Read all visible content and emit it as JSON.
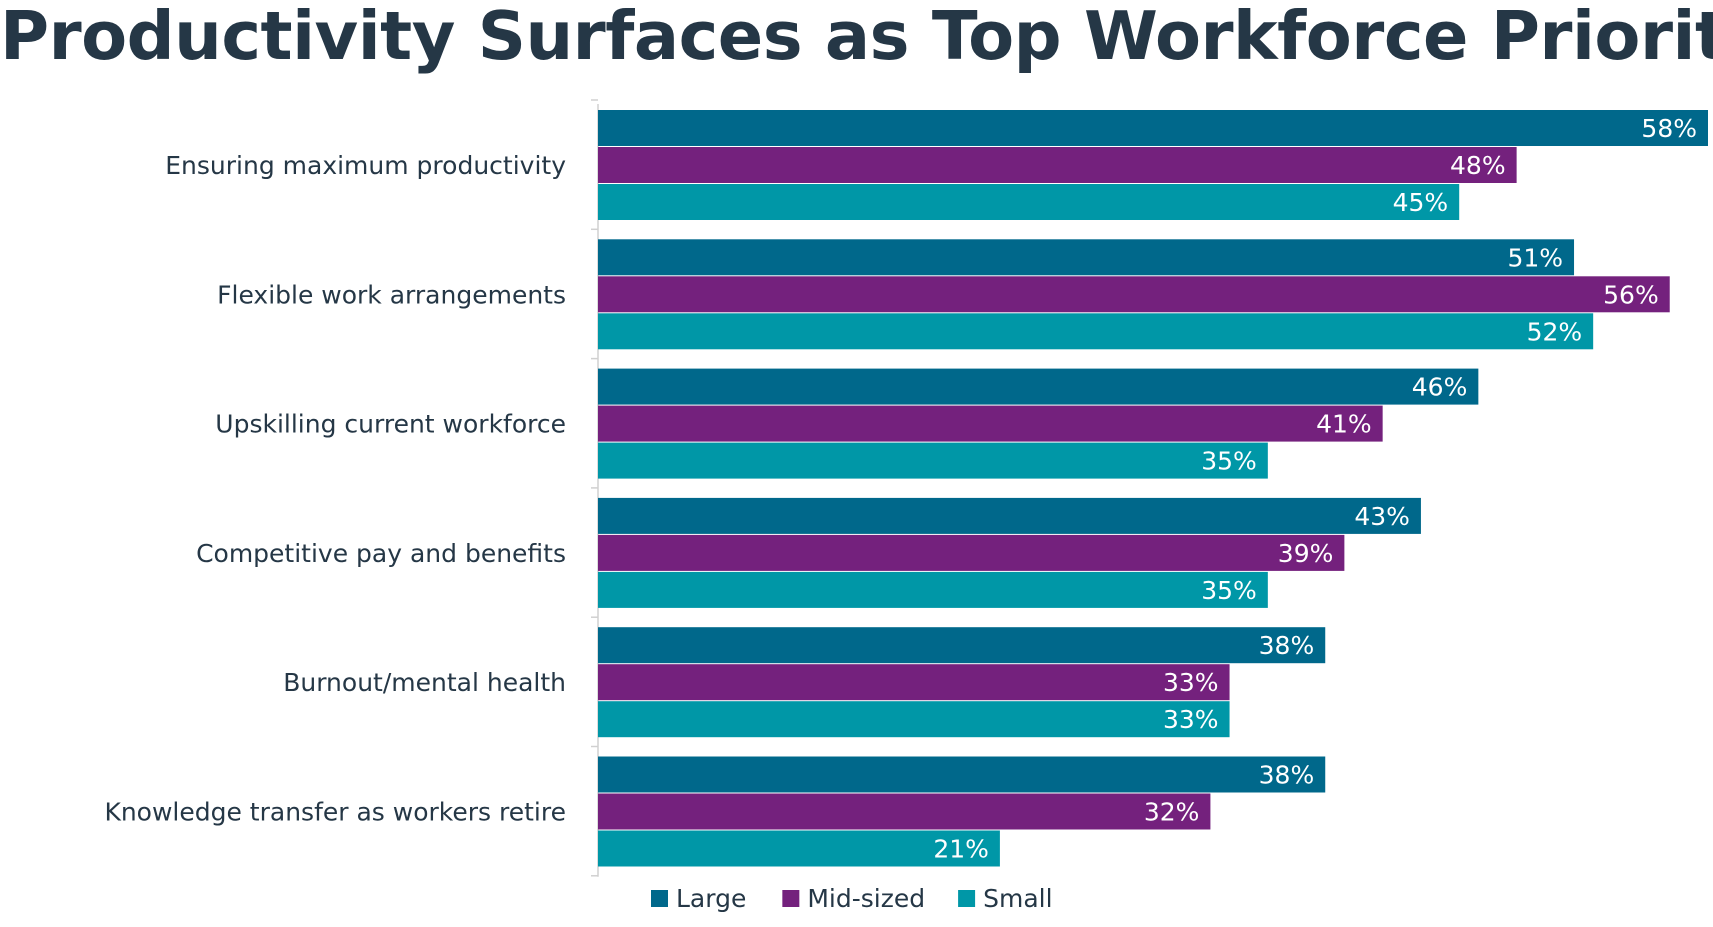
{
  "chart_data": {
    "type": "bar",
    "orientation": "horizontal",
    "title": "Productivity Surfaces as Top Workforce Priority",
    "categories": [
      "Ensuring maximum productivity",
      "Flexible work arrangements",
      "Upskilling current workforce",
      "Competitive pay and benefits",
      "Burnout/mental health",
      "Knowledge transfer as workers retire"
    ],
    "series": [
      {
        "name": "Large",
        "color": "#00688B",
        "values": [
          58,
          51,
          46,
          43,
          38,
          38
        ],
        "labels": [
          "58%",
          "51%",
          "46%",
          "43%",
          "38%",
          "38%"
        ]
      },
      {
        "name": "Mid-sized",
        "color": "#74217D",
        "values": [
          48,
          56,
          41,
          39,
          33,
          32
        ],
        "labels": [
          "48%",
          "56%",
          "41%",
          "39%",
          "33%",
          "32%"
        ]
      },
      {
        "name": "Small",
        "color": "#0097A7",
        "values": [
          45,
          52,
          35,
          35,
          33,
          21
        ],
        "labels": [
          "45%",
          "52%",
          "35%",
          "35%",
          "33%",
          "21%"
        ]
      }
    ],
    "value_suffix": "%",
    "xlim": [
      0,
      58
    ],
    "xlabel": "",
    "ylabel": "",
    "grid": false,
    "legend_position": "bottom"
  }
}
